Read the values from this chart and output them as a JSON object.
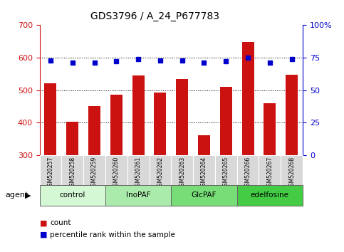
{
  "title": "GDS3796 / A_24_P677783",
  "samples": [
    "GSM520257",
    "GSM520258",
    "GSM520259",
    "GSM520260",
    "GSM520261",
    "GSM520262",
    "GSM520263",
    "GSM520264",
    "GSM520265",
    "GSM520266",
    "GSM520267",
    "GSM520268"
  ],
  "counts": [
    520,
    403,
    450,
    485,
    545,
    492,
    535,
    360,
    510,
    648,
    460,
    548
  ],
  "percentiles": [
    73,
    71,
    71,
    72,
    74,
    73,
    73,
    71,
    72,
    75,
    71,
    74
  ],
  "groups": [
    {
      "label": "control",
      "start": 0,
      "end": 3,
      "color": "#d4f7d4"
    },
    {
      "label": "InoPAF",
      "start": 3,
      "end": 6,
      "color": "#aaeaaa"
    },
    {
      "label": "GlcPAF",
      "start": 6,
      "end": 9,
      "color": "#77dd77"
    },
    {
      "label": "edelfosine",
      "start": 9,
      "end": 12,
      "color": "#44cc44"
    }
  ],
  "bar_color": "#cc1111",
  "dot_color": "#0000cc",
  "bar_bottom": 300,
  "ylim_left": [
    300,
    700
  ],
  "ylim_right": [
    0,
    100
  ],
  "yticks_left": [
    300,
    400,
    500,
    600,
    700
  ],
  "yticks_right": [
    0,
    25,
    50,
    75,
    100
  ],
  "grid_lines": [
    400,
    500,
    600
  ],
  "plot_bg": "#ffffff",
  "label_bg": "#d8d8d8"
}
